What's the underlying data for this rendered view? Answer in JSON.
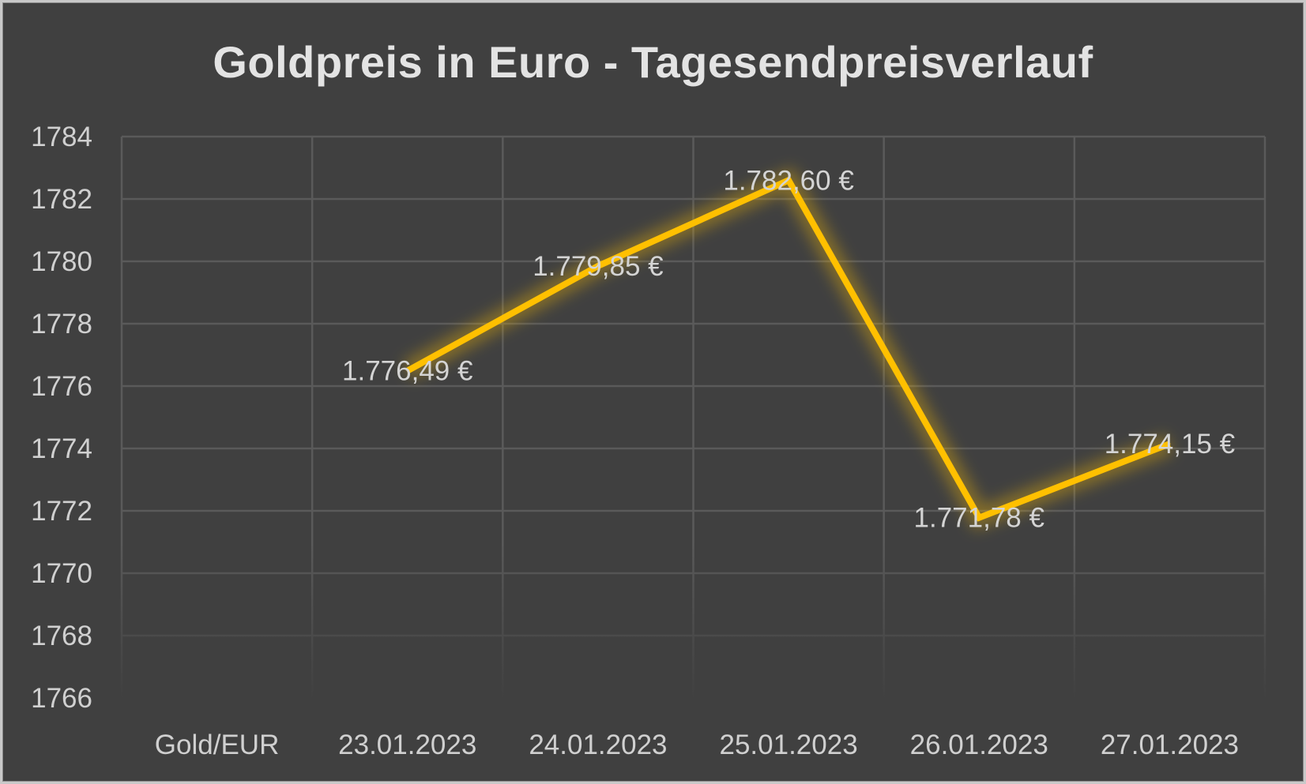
{
  "chart_data": {
    "type": "line",
    "title": "Goldpreis in Euro - Tagesendpreisverlauf",
    "categories": [
      "Gold/EUR",
      "23.01.2023",
      "24.01.2023",
      "25.01.2023",
      "26.01.2023",
      "27.01.2023"
    ],
    "series": [
      {
        "values": [
          null,
          1776.49,
          1779.85,
          1782.6,
          1771.78,
          1774.15
        ],
        "data_labels": [
          "",
          "1.776,49 €",
          "1.779,85 €",
          "1.782,60 €",
          "1.771,78 €",
          "1.774,15 €"
        ],
        "color": "#ffc000"
      }
    ],
    "ylim": [
      1766,
      1784
    ],
    "y_ticks": [
      "1766",
      "1768",
      "1770",
      "1772",
      "1774",
      "1776",
      "1778",
      "1780",
      "1782",
      "1784"
    ],
    "grid": true,
    "legend": "none",
    "colors": {
      "background": "#404040",
      "grid": "#5a5a5a",
      "text": "#d0d0d0"
    }
  }
}
